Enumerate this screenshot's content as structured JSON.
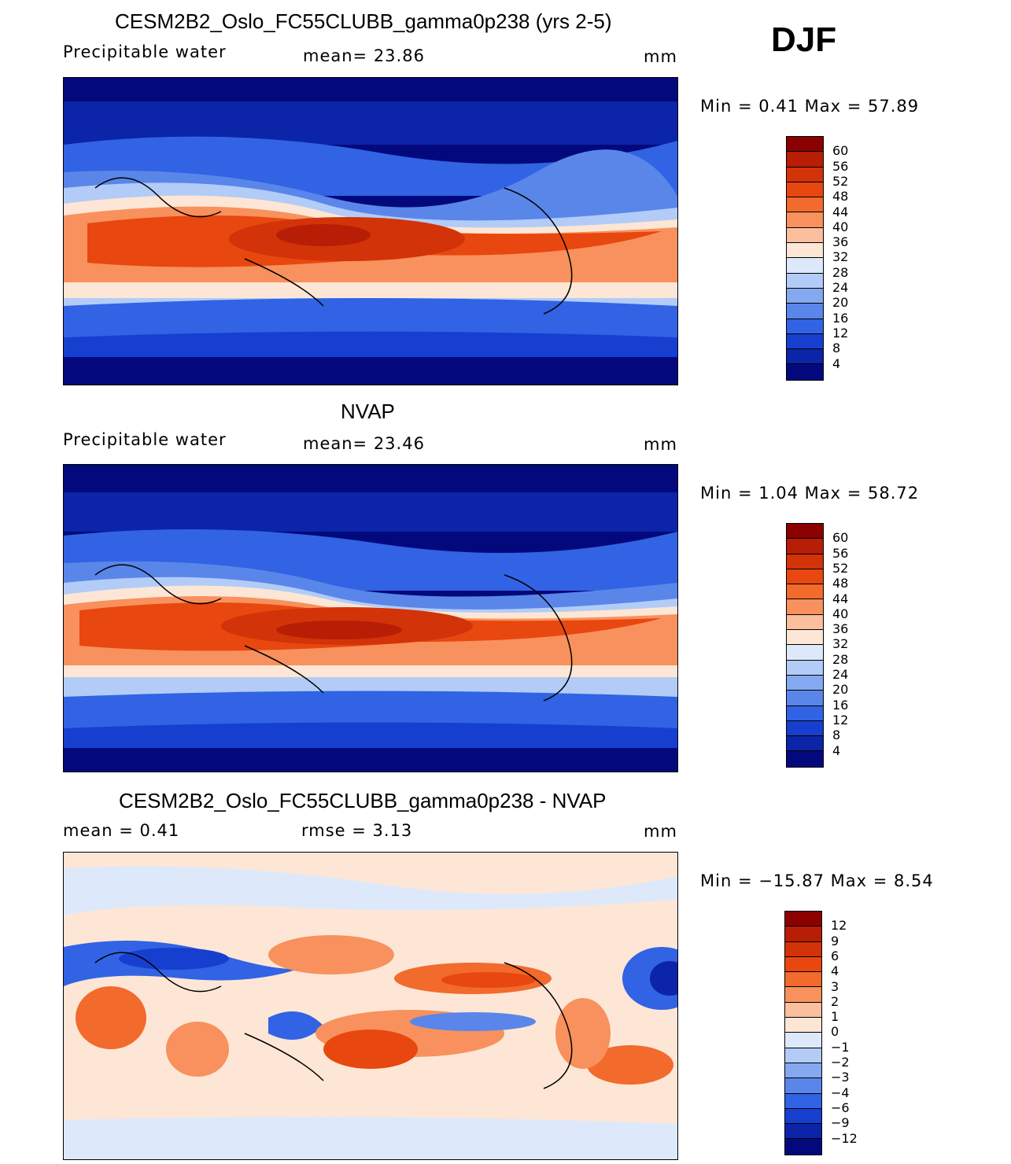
{
  "season": "DJF",
  "panels": [
    {
      "title": "CESM2B2_Oslo_FC55CLUBB_gamma0p238 (yrs 2-5)",
      "left_label": "Precipitable  water",
      "center_label": "mean=   23.86",
      "units": "mm",
      "minmax": "Min  =     0.41  Max  =    57.89",
      "colors": [
        "#8b0000",
        "#b81d06",
        "#d23308",
        "#e8470f",
        "#f26a2c",
        "#f8915d",
        "#fbbf9e",
        "#fde6d5",
        "#dde9fb",
        "#b2ccf7",
        "#84a9f0",
        "#5a86ea",
        "#3163e4",
        "#173fcf",
        "#0b24a8",
        "#03097d"
      ],
      "ticks": [
        "60",
        "56",
        "52",
        "48",
        "44",
        "40",
        "36",
        "32",
        "28",
        "24",
        "20",
        "16",
        "12",
        "8",
        "4"
      ]
    },
    {
      "title": "NVAP",
      "left_label": "Precipitable  water",
      "center_label": "mean=   23.46",
      "units": "mm",
      "minmax": "Min  =     1.04  Max  =    58.72",
      "colors": [
        "#8b0000",
        "#b81d06",
        "#d23308",
        "#e8470f",
        "#f26a2c",
        "#f8915d",
        "#fbbf9e",
        "#fde6d5",
        "#dde9fb",
        "#b2ccf7",
        "#84a9f0",
        "#5a86ea",
        "#3163e4",
        "#173fcf",
        "#0b24a8",
        "#03097d"
      ],
      "ticks": [
        "60",
        "56",
        "52",
        "48",
        "44",
        "40",
        "36",
        "32",
        "28",
        "24",
        "20",
        "16",
        "12",
        "8",
        "4"
      ]
    },
    {
      "title": "CESM2B2_Oslo_FC55CLUBB_gamma0p238 - NVAP",
      "left_label": "mean  =     0.41",
      "center_label": "rmse  =     3.13",
      "units": "mm",
      "minmax": "Min  =  −15.87  Max  =     8.54",
      "colors": [
        "#8b0000",
        "#b81d06",
        "#d23308",
        "#e8470f",
        "#f26a2c",
        "#f8915d",
        "#fbbf9e",
        "#fde6d5",
        "#dde9fb",
        "#b2ccf7",
        "#84a9f0",
        "#5a86ea",
        "#3163e4",
        "#173fcf",
        "#0b24a8",
        "#03097d"
      ],
      "ticks": [
        "12",
        "9",
        "6",
        "4",
        "3",
        "2",
        "1",
        "0",
        "−1",
        "−2",
        "−3",
        "−4",
        "−6",
        "−9",
        "−12"
      ]
    }
  ]
}
